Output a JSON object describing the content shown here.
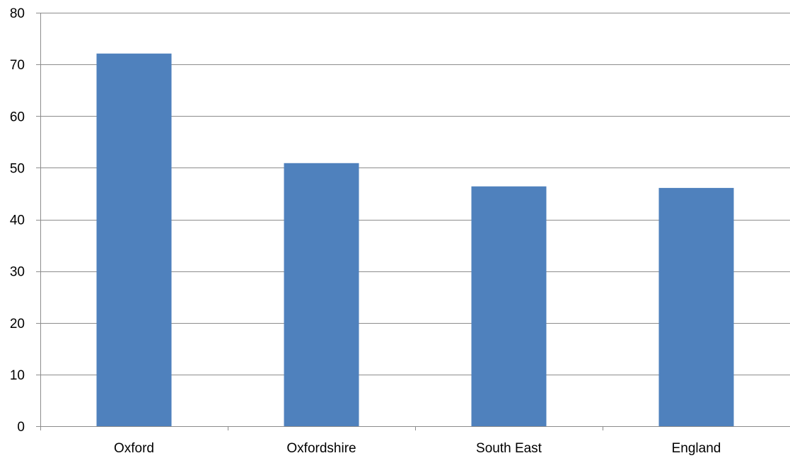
{
  "chart_data": {
    "type": "bar",
    "categories": [
      "Oxford",
      "Oxfordshire",
      "South East",
      "England"
    ],
    "values": [
      72.1,
      50.9,
      46.4,
      46.1
    ],
    "ylim": [
      0,
      80
    ],
    "yticks": [
      0,
      10,
      20,
      30,
      40,
      50,
      60,
      70,
      80
    ],
    "grid": true,
    "legend": "none",
    "colors": {
      "bar": "#4f81bd",
      "grid": "#8c8c8c",
      "text": "#000000"
    }
  }
}
